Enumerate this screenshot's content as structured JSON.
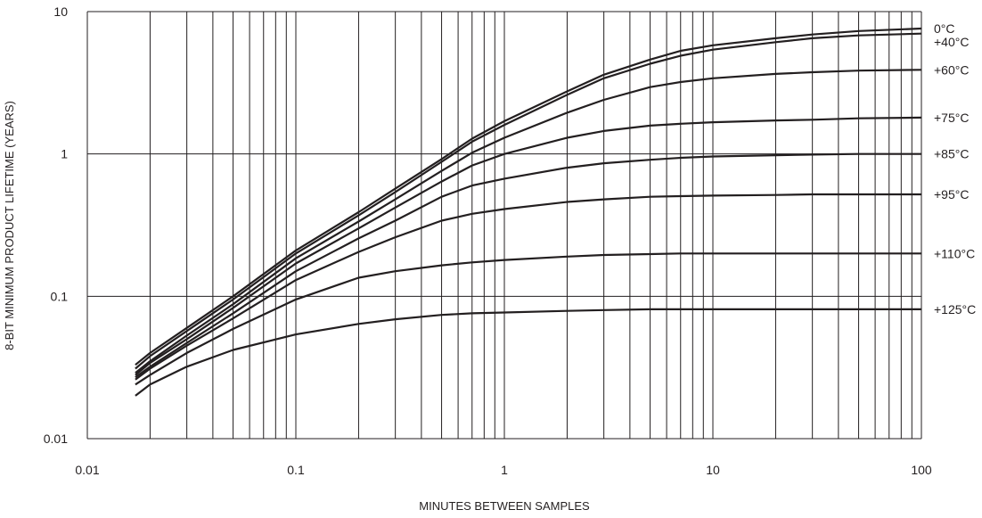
{
  "chart_data": {
    "type": "line",
    "xscale": "log",
    "yscale": "log",
    "xlim": [
      0.01,
      100
    ],
    "ylim": [
      0.01,
      10
    ],
    "grid": true,
    "xlabel": "MINUTES BETWEEN SAMPLES",
    "ylabel": "8-BIT MINIMUM PRODUCT LIFETIME (YEARS)",
    "xtick_labels": [
      "0.01",
      "0.1",
      "1",
      "10",
      "100"
    ],
    "ytick_labels": [
      "10",
      "1",
      "0.1",
      "0.01"
    ],
    "x": [
      0.017,
      0.02,
      0.03,
      0.05,
      0.1,
      0.2,
      0.3,
      0.5,
      0.7,
      1,
      2,
      3,
      5,
      7,
      10,
      20,
      30,
      50,
      100
    ],
    "series": [
      {
        "name": "0°C",
        "values": [
          0.033,
          0.04,
          0.06,
          0.1,
          0.21,
          0.39,
          0.57,
          0.92,
          1.28,
          1.7,
          2.75,
          3.6,
          4.6,
          5.3,
          5.8,
          6.5,
          6.9,
          7.3,
          7.6
        ]
      },
      {
        "name": "+40°C",
        "values": [
          0.031,
          0.038,
          0.057,
          0.095,
          0.2,
          0.37,
          0.54,
          0.88,
          1.22,
          1.6,
          2.6,
          3.4,
          4.3,
          4.9,
          5.4,
          6.1,
          6.5,
          6.8,
          7.0
        ]
      },
      {
        "name": "+60°C",
        "values": [
          0.029,
          0.035,
          0.053,
          0.088,
          0.185,
          0.335,
          0.48,
          0.76,
          1.02,
          1.3,
          1.95,
          2.4,
          2.95,
          3.2,
          3.4,
          3.65,
          3.75,
          3.85,
          3.9
        ]
      },
      {
        "name": "+75°C",
        "values": [
          0.028,
          0.034,
          0.05,
          0.083,
          0.17,
          0.3,
          0.42,
          0.64,
          0.83,
          1.0,
          1.3,
          1.45,
          1.58,
          1.63,
          1.67,
          1.72,
          1.74,
          1.78,
          1.8
        ]
      },
      {
        "name": "+85°C",
        "values": [
          0.027,
          0.032,
          0.047,
          0.076,
          0.15,
          0.255,
          0.34,
          0.5,
          0.6,
          0.67,
          0.8,
          0.86,
          0.91,
          0.94,
          0.96,
          0.98,
          0.99,
          1.0,
          1.0
        ]
      },
      {
        "name": "+95°C",
        "values": [
          0.026,
          0.031,
          0.045,
          0.07,
          0.13,
          0.205,
          0.26,
          0.34,
          0.38,
          0.41,
          0.46,
          0.48,
          0.5,
          0.505,
          0.51,
          0.515,
          0.52,
          0.52,
          0.52
        ]
      },
      {
        "name": "+110°C",
        "values": [
          0.024,
          0.028,
          0.04,
          0.059,
          0.095,
          0.135,
          0.15,
          0.165,
          0.173,
          0.18,
          0.19,
          0.195,
          0.198,
          0.2,
          0.2,
          0.2,
          0.2,
          0.2,
          0.2
        ]
      },
      {
        "name": "+125°C",
        "values": [
          0.02,
          0.024,
          0.032,
          0.042,
          0.054,
          0.064,
          0.069,
          0.074,
          0.076,
          0.077,
          0.079,
          0.08,
          0.081,
          0.081,
          0.081,
          0.081,
          0.081,
          0.081,
          0.081
        ]
      }
    ],
    "colors": {
      "line": "#231f20",
      "grid": "#231f20",
      "text": "#231f20",
      "background": "#ffffff"
    }
  }
}
